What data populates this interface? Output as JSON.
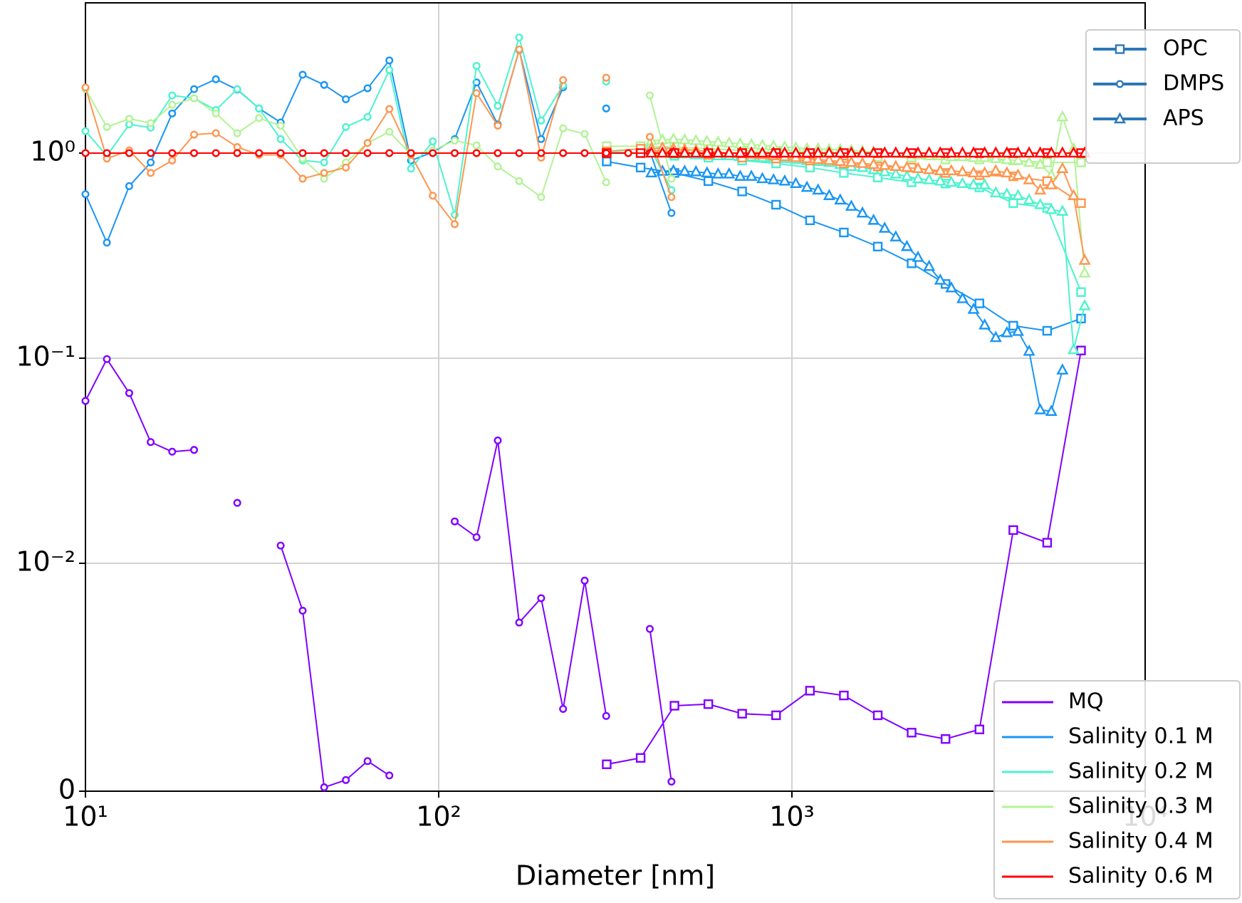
{
  "chart_data": {
    "type": "line",
    "xlabel": "Diameter [nm]",
    "xscale": "log",
    "yscale": "symlog",
    "linthresh": 0.01,
    "xlim": [
      10,
      10000
    ],
    "ylim": [
      0,
      5.4
    ],
    "xticks": [
      {
        "value": 10,
        "label": "10¹"
      },
      {
        "value": 100,
        "label": "10²"
      },
      {
        "value": 1000,
        "label": "10³"
      },
      {
        "value": 10000,
        "label": "10⁴"
      }
    ],
    "yticks": [
      0,
      {
        "value": 0.01,
        "label": "10⁻²"
      },
      {
        "value": 0.1,
        "label": "10⁻¹"
      },
      {
        "value": 1,
        "label": "10⁰"
      }
    ],
    "grid": true,
    "legend_loc": "lower right",
    "marker_legend_loc": "upper right",
    "marker_legend_color": "#2b78b8",
    "markers": [
      {
        "name": "OPC",
        "marker": "square",
        "x": [
          299,
          373,
          465,
          580,
          723,
          902,
          1125,
          1403,
          1750,
          2182,
          2722,
          3395,
          4234,
          5280,
          6585
        ]
      },
      {
        "name": "DMPS",
        "marker": "circle",
        "x": [
          10,
          11.5,
          13.3,
          15.3,
          17.6,
          20.3,
          23.4,
          26.9,
          31.0,
          35.7,
          41.2,
          47.4,
          54.6,
          62.9,
          72.5,
          83.5,
          96.2,
          111,
          128,
          147,
          169,
          195,
          225,
          259,
          298,
          344,
          396,
          456
        ]
      },
      {
        "name": "APS",
        "marker": "triangle",
        "x": [
          400,
          430,
          462,
          497,
          535,
          575,
          618,
          664,
          714,
          768,
          825,
          887,
          954,
          1026,
          1103,
          1186,
          1275,
          1370,
          1473,
          1584,
          1703,
          1831,
          1968,
          2116,
          2275,
          2446,
          2630,
          2827,
          3040,
          3268,
          3513,
          3777,
          4061,
          4366,
          4694,
          5046,
          5425,
          5833,
          6271,
          6742
        ]
      }
    ],
    "series": [
      {
        "name": "MQ",
        "color": "#8000ff",
        "values": [
          [
            0.00118,
            0.00146,
            0.00375,
            0.00382,
            0.0034,
            0.00333,
            0.00441,
            0.0042,
            0.00333,
            0.00257,
            0.00229,
            0.00271,
            0.01452,
            0.0126,
            0.109
          ],
          [
            0.0619,
            0.099,
            0.0676,
            0.039,
            0.035,
            0.0357,
            null,
            0.0197,
            null,
            0.0122,
            0.00792,
            0.00017,
            0.00049,
            0.00132,
            0.00069,
            null,
            null,
            0.016,
            0.0134,
            0.0397,
            0.0074,
            0.00847,
            0.00361,
            0.00924,
            0.0033,
            null,
            0.00712,
            0.00042
          ],
          [
            null,
            null,
            null,
            null,
            null,
            null,
            null,
            null,
            null,
            null,
            null,
            null,
            null,
            null,
            null,
            null,
            null,
            null,
            null,
            null,
            null,
            null,
            null,
            null,
            null,
            null,
            null,
            null,
            null,
            null,
            null,
            null,
            null,
            null,
            null,
            null,
            null,
            null,
            null,
            null
          ]
        ]
      },
      {
        "name": "Salinity 0.1 M",
        "color": "#1996f3",
        "values": [
          [
            0.91,
            0.85,
            0.8,
            0.73,
            0.65,
            0.56,
            0.47,
            0.41,
            0.35,
            0.29,
            0.23,
            0.185,
            0.144,
            0.136,
            0.156
          ],
          [
            0.63,
            0.366,
            0.69,
            0.9,
            1.56,
            2.05,
            2.29,
            2.04,
            1.65,
            1.41,
            2.41,
            2.15,
            1.83,
            2.07,
            2.83,
            0.92,
            1.01,
            1.17,
            2.21,
            1.38,
            3.18,
            1.17,
            2.09,
            null,
            1.65,
            null,
            1.02,
            0.51
          ],
          [
            0.8,
            0.815,
            0.82,
            0.815,
            0.81,
            0.8,
            0.79,
            0.79,
            0.77,
            0.77,
            0.75,
            0.74,
            0.73,
            0.71,
            0.68,
            0.66,
            0.62,
            0.59,
            0.55,
            0.51,
            0.47,
            0.43,
            0.39,
            0.35,
            0.31,
            0.28,
            0.24,
            0.22,
            0.195,
            0.173,
            0.145,
            0.126,
            0.133,
            0.135,
            0.108,
            0.056,
            0.055,
            0.0875,
            null,
            null
          ]
        ]
      },
      {
        "name": "Salinity 0.2 M",
        "color": "#4df3ce",
        "values": [
          [
            1.02,
            1.0,
            0.97,
            0.95,
            0.92,
            0.89,
            0.85,
            0.8,
            0.76,
            0.72,
            0.71,
            0.68,
            0.57,
            0.54,
            0.21
          ],
          [
            1.28,
            0.97,
            1.38,
            1.33,
            1.91,
            1.85,
            1.62,
            2.05,
            1.65,
            1.17,
            0.92,
            0.9,
            1.34,
            1.5,
            2.54,
            0.84,
            1.14,
            0.5,
            2.66,
            1.7,
            3.66,
            1.44,
            2.14,
            null,
            2.23,
            null,
            1.07,
            0.66
          ],
          [
            1.0,
            1.0,
            0.99,
            0.99,
            0.98,
            0.98,
            0.97,
            0.97,
            0.96,
            0.96,
            0.95,
            0.95,
            0.94,
            0.93,
            0.92,
            0.91,
            0.9,
            0.88,
            0.86,
            0.85,
            0.83,
            0.81,
            0.79,
            0.77,
            0.75,
            0.74,
            0.73,
            0.72,
            0.71,
            0.7,
            0.7,
            0.64,
            0.63,
            0.62,
            0.59,
            0.56,
            0.53,
            0.52,
            0.11,
            0.18
          ]
        ]
      },
      {
        "name": "Salinity 0.3 M",
        "color": "#b2f396",
        "values": [
          [
            1.08,
            1.08,
            1.07,
            1.05,
            1.03,
            1.01,
            0.98,
            0.97,
            0.96,
            0.95,
            0.93,
            0.93,
            0.92,
            0.9,
            0.9
          ],
          [
            2.05,
            1.34,
            1.47,
            1.4,
            1.72,
            1.85,
            1.56,
            1.25,
            1.48,
            1.36,
            0.94,
            0.75,
            0.9,
            1.12,
            1.27,
            0.98,
            1.03,
            1.15,
            1.09,
            0.86,
            0.73,
            0.61,
            1.32,
            1.24,
            0.72,
            null,
            1.91,
            0.75
          ],
          [
            1.15,
            1.16,
            1.17,
            1.16,
            1.15,
            1.14,
            1.13,
            1.12,
            1.11,
            1.1,
            1.09,
            1.08,
            1.07,
            1.06,
            1.05,
            1.05,
            1.04,
            1.04,
            1.03,
            1.02,
            1.01,
            1.0,
            1.0,
            0.99,
            0.98,
            0.97,
            0.97,
            0.96,
            0.96,
            0.95,
            0.95,
            0.94,
            0.93,
            0.92,
            0.9,
            0.88,
            0.78,
            1.5,
            1.05,
            0.26
          ]
        ]
      },
      {
        "name": "Salinity 0.4 M",
        "color": "#ff964f",
        "values": [
          [
            1.02,
            1.05,
            1.0,
            0.98,
            0.95,
            0.94,
            0.92,
            0.89,
            0.86,
            0.85,
            0.8,
            0.78,
            0.77,
            0.73,
            0.57
          ],
          [
            2.09,
            0.94,
            1.03,
            0.8,
            0.92,
            1.23,
            1.25,
            1.07,
            0.98,
            0.98,
            0.75,
            0.8,
            0.85,
            1.12,
            1.64,
            0.98,
            0.62,
            0.45,
            1.96,
            1.36,
            3.2,
            0.95,
            2.27,
            null,
            2.33,
            null,
            1.2,
            0.61
          ],
          [
            1.05,
            1.06,
            1.05,
            1.04,
            1.03,
            1.02,
            1.01,
            1.0,
            1.0,
            0.99,
            0.98,
            0.97,
            0.96,
            0.95,
            0.94,
            0.93,
            0.92,
            0.91,
            0.9,
            0.89,
            0.88,
            0.87,
            0.86,
            0.85,
            0.84,
            0.83,
            0.82,
            0.82,
            0.81,
            0.8,
            0.8,
            0.82,
            0.8,
            0.78,
            0.74,
            0.66,
            0.7,
            0.84,
            0.62,
            0.3
          ]
        ]
      },
      {
        "name": "Salinity 0.6 M",
        "color": "#ff0000",
        "values": [
          [
            1,
            1,
            1,
            1,
            1,
            1,
            1,
            1,
            1,
            1,
            1,
            1,
            1,
            1,
            1
          ],
          [
            1,
            1,
            1,
            1,
            1,
            1,
            1,
            1,
            1,
            1,
            1,
            1,
            1,
            1,
            1,
            1,
            1,
            1,
            1,
            1,
            1,
            1,
            1,
            1,
            1,
            1,
            1,
            1
          ],
          [
            1,
            1,
            1,
            1,
            1,
            1,
            1,
            1,
            1,
            1,
            1,
            1,
            1,
            1,
            1,
            1,
            1,
            1,
            1,
            1,
            1,
            1,
            1,
            1,
            1,
            1,
            1,
            1,
            1,
            1,
            1,
            1,
            1,
            1,
            1,
            1,
            1,
            1,
            1,
            1
          ]
        ]
      }
    ]
  }
}
